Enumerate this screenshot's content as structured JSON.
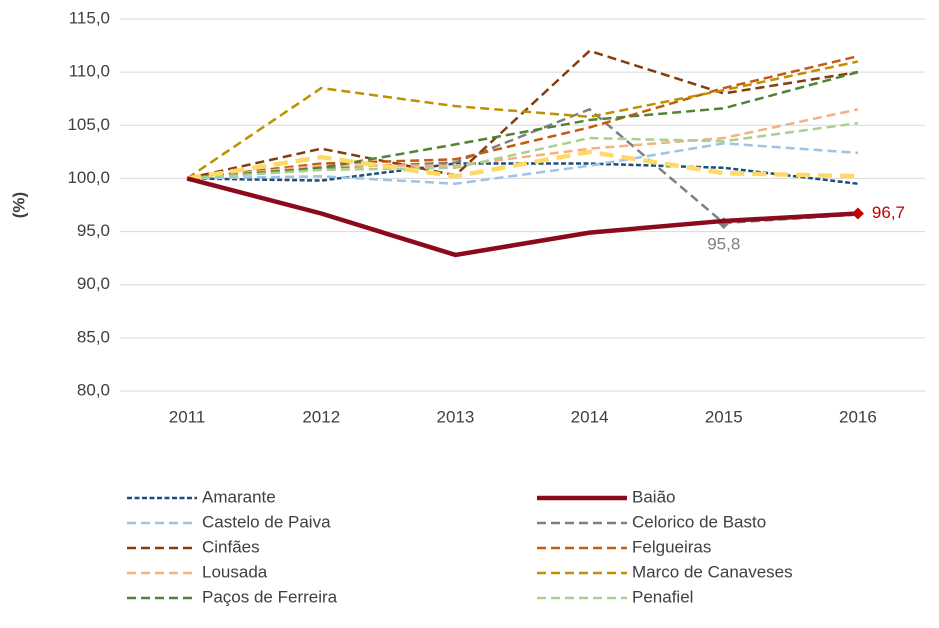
{
  "chart_data": {
    "type": "line",
    "y_label": "(%)",
    "categories": [
      "2011",
      "2012",
      "2013",
      "2014",
      "2015",
      "2016"
    ],
    "ylim": [
      80,
      115
    ],
    "yticks": [
      {
        "value": 80,
        "label": "80,0"
      },
      {
        "value": 85,
        "label": "85,0"
      },
      {
        "value": 90,
        "label": "90,0"
      },
      {
        "value": 95,
        "label": "95,0"
      },
      {
        "value": 100,
        "label": "100,0"
      },
      {
        "value": 105,
        "label": "105,0"
      },
      {
        "value": 110,
        "label": "110,0"
      },
      {
        "value": 115,
        "label": "115,0"
      }
    ],
    "grid": true,
    "series": [
      {
        "name": "Amarante",
        "color": "#1f4e79",
        "dash": "dot",
        "values": [
          100,
          99.8,
          101.4,
          101.4,
          101.0,
          99.5
        ]
      },
      {
        "name": "Baião",
        "color": "#8b0a1e",
        "dash": "solid",
        "values": [
          100,
          96.7,
          92.8,
          94.9,
          96.0,
          96.7
        ],
        "value_labels": [
          null,
          null,
          null,
          null,
          null,
          "96,7"
        ],
        "label_color": "#c00000"
      },
      {
        "name": "Castelo de Paiva",
        "color": "#9dc3e6",
        "dash": "dash",
        "values": [
          100,
          100.2,
          99.5,
          101.2,
          103.3,
          102.4
        ]
      },
      {
        "name": "Celorico de Basto",
        "color": "#7f7f7f",
        "dash": "dash",
        "values": [
          100,
          101.0,
          101.5,
          106.5,
          95.8,
          96.6
        ],
        "value_labels": [
          null,
          null,
          null,
          null,
          "95,8",
          null
        ],
        "label_color": "#7f7f7f"
      },
      {
        "name": "Cinfães",
        "color": "#843c0c",
        "dash": "dash",
        "values": [
          100,
          102.8,
          100.3,
          112.0,
          108.0,
          110.0
        ]
      },
      {
        "name": "Felgueiras",
        "color": "#c55a11",
        "dash": "dash",
        "values": [
          100,
          101.4,
          101.8,
          104.8,
          108.5,
          111.5
        ]
      },
      {
        "name": "Lousada",
        "color": "#f4b183",
        "dash": "dash",
        "values": [
          100,
          101.2,
          101.2,
          102.8,
          103.8,
          106.5
        ]
      },
      {
        "name": "Marco de Canaveses",
        "color": "#bf9000",
        "dash": "dash",
        "values": [
          100,
          108.5,
          106.8,
          105.8,
          108.3,
          111.0
        ]
      },
      {
        "name": "Paços de Ferreira",
        "color": "#548235",
        "dash": "dash",
        "values": [
          100,
          101.0,
          103.2,
          105.5,
          106.6,
          110.0
        ]
      },
      {
        "name": "Penafiel",
        "color": "#a9d18e",
        "dash": "dash",
        "values": [
          100,
          100.8,
          101.0,
          103.8,
          103.5,
          105.2
        ]
      },
      {
        "color": "#ffd966",
        "dash": "thick",
        "values": [
          100,
          102.0,
          100.2,
          102.5,
          100.5,
          100.2
        ]
      }
    ]
  }
}
